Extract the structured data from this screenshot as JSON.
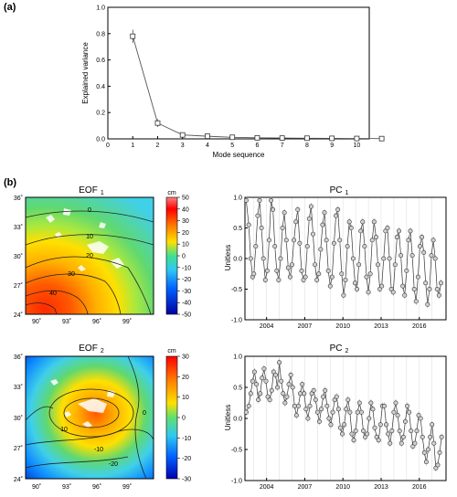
{
  "panel_a_label": "(a)",
  "panel_b_label": "(b)",
  "eof1": {
    "title_base": "EOF",
    "title_sub": "1",
    "unit": "cm",
    "colorbar_ticks": [
      "50",
      "40",
      "30",
      "20",
      "10",
      "0",
      "-10",
      "-20",
      "-30",
      "-40",
      "-50"
    ],
    "lat_ticks": [
      "36˚",
      "33˚",
      "30˚",
      "27˚",
      "24˚"
    ],
    "lon_ticks": [
      "90˚",
      "93˚",
      "96˚",
      "99˚"
    ],
    "contour_labels": [
      "0",
      "10",
      "20",
      "30",
      "40"
    ],
    "colors": {
      "top": "#ff7f7f",
      "yellow": "#ffe000",
      "green": "#60d870",
      "cyan": "#40d0e8",
      "red": "#ff2a00"
    }
  },
  "eof2": {
    "title_base": "EOF",
    "title_sub": "2",
    "unit": "cm",
    "colorbar_ticks": [
      "30",
      "20",
      "10",
      "0",
      "-10",
      "-20",
      "-30"
    ],
    "lat_ticks": [
      "36˚",
      "33˚",
      "30˚",
      "27˚",
      "24˚"
    ],
    "lon_ticks": [
      "90˚",
      "93˚",
      "96˚",
      "99˚"
    ],
    "contour_labels": [
      "0",
      "10",
      "-10",
      "-20"
    ]
  },
  "pc1": {
    "title_base": "PC",
    "title_sub": "1",
    "ylabel": "Unitless",
    "yticks": [
      "1.0",
      "0.5",
      "0.0",
      "-0.5",
      "-1.0"
    ],
    "xticks": [
      "2004",
      "2007",
      "2010",
      "2013",
      "2016"
    ]
  },
  "pc2": {
    "title_base": "PC",
    "title_sub": "2",
    "ylabel": "Unitless",
    "yticks": [
      "1.0",
      "0.5",
      "0.0",
      "-0.5",
      "-1.0"
    ],
    "xticks": [
      "2004",
      "2007",
      "2010",
      "2013",
      "2016"
    ]
  },
  "chart_data": [
    {
      "type": "line",
      "xlabel": "Mode sequence",
      "ylabel": "Explained variance",
      "xlim": [
        0,
        10.5
      ],
      "ylim": [
        0,
        1.0
      ],
      "xticks": [
        0,
        1,
        2,
        3,
        4,
        5,
        6,
        7,
        8,
        9,
        10
      ],
      "yticks": [
        0.0,
        0.2,
        0.4,
        0.6,
        0.8,
        1.0
      ],
      "x": [
        1,
        2,
        3,
        4,
        5,
        6,
        7,
        8,
        9,
        10,
        11
      ],
      "y": [
        0.78,
        0.12,
        0.03,
        0.02,
        0.012,
        0.008,
        0.006,
        0.005,
        0.004,
        0.003,
        0.002
      ],
      "error": [
        0.05,
        0.03,
        0.008,
        0.006,
        0.004,
        0.003,
        0.003,
        0.002,
        0.002,
        0.002,
        0.002
      ]
    },
    {
      "type": "line",
      "xlim": [
        2002.3,
        2018.1
      ],
      "ylim": [
        -1.0,
        1.0
      ],
      "x": [
        2002.4,
        2002.6,
        2002.75,
        2002.9,
        2003.0,
        2003.15,
        2003.3,
        2003.45,
        2003.6,
        2003.75,
        2003.9,
        2004.05,
        2004.2,
        2004.35,
        2004.5,
        2004.65,
        2004.8,
        2004.95,
        2005.1,
        2005.25,
        2005.4,
        2005.55,
        2005.7,
        2005.85,
        2006.0,
        2006.15,
        2006.3,
        2006.45,
        2006.6,
        2006.75,
        2006.9,
        2007.05,
        2007.2,
        2007.35,
        2007.5,
        2007.65,
        2007.8,
        2007.95,
        2008.1,
        2008.25,
        2008.4,
        2008.55,
        2008.7,
        2008.85,
        2009.0,
        2009.15,
        2009.3,
        2009.45,
        2009.6,
        2009.75,
        2009.9,
        2010.05,
        2010.2,
        2010.35,
        2010.5,
        2010.65,
        2010.8,
        2010.95,
        2011.1,
        2011.25,
        2011.4,
        2011.55,
        2011.7,
        2011.85,
        2012.0,
        2012.15,
        2012.3,
        2012.45,
        2012.6,
        2012.75,
        2012.9,
        2013.05,
        2013.2,
        2013.35,
        2013.5,
        2013.65,
        2013.8,
        2013.95,
        2014.1,
        2014.25,
        2014.4,
        2014.55,
        2014.7,
        2014.85,
        2015.0,
        2015.15,
        2015.3,
        2015.45,
        2015.6,
        2015.75,
        2015.9,
        2016.05,
        2016.2,
        2016.35,
        2016.5,
        2016.65,
        2016.8,
        2016.95,
        2017.1,
        2017.25,
        2017.4,
        2017.55,
        2017.7
      ],
      "y": [
        0.95,
        0.55,
        0.0,
        -0.3,
        -0.25,
        0.2,
        0.7,
        0.95,
        0.5,
        0.0,
        -0.35,
        -0.2,
        0.3,
        0.95,
        0.8,
        0.2,
        -0.2,
        -0.35,
        0.0,
        0.5,
        0.75,
        0.3,
        -0.15,
        -0.3,
        -0.1,
        0.3,
        0.6,
        0.8,
        0.25,
        -0.2,
        -0.35,
        -0.3,
        0.2,
        0.65,
        0.85,
        0.4,
        -0.1,
        -0.35,
        -0.25,
        0.15,
        0.55,
        0.75,
        0.3,
        -0.2,
        -0.45,
        -0.3,
        0.25,
        0.7,
        0.8,
        0.3,
        -0.25,
        -0.6,
        -0.35,
        0.2,
        0.6,
        0.5,
        0.0,
        -0.4,
        -0.5,
        -0.1,
        0.45,
        0.6,
        0.2,
        -0.3,
        -0.55,
        -0.25,
        0.3,
        0.6,
        0.35,
        -0.1,
        -0.5,
        -0.45,
        0.0,
        0.45,
        0.5,
        0.0,
        -0.5,
        -0.55,
        -0.1,
        0.35,
        0.45,
        0.05,
        -0.45,
        -0.6,
        -0.2,
        0.3,
        0.45,
        0.05,
        -0.5,
        -0.7,
        -0.3,
        0.2,
        0.35,
        0.1,
        -0.4,
        -0.75,
        -0.5,
        0.05,
        0.3,
        0.0,
        -0.5,
        -0.6,
        -0.4
      ]
    },
    {
      "type": "line",
      "xlim": [
        2002.3,
        2018.1
      ],
      "ylim": [
        -1.0,
        1.0
      ],
      "x": [
        2002.4,
        2002.6,
        2002.75,
        2002.9,
        2003.05,
        2003.2,
        2003.35,
        2003.5,
        2003.65,
        2003.8,
        2003.95,
        2004.1,
        2004.25,
        2004.4,
        2004.55,
        2004.7,
        2004.85,
        2005.0,
        2005.15,
        2005.3,
        2005.45,
        2005.6,
        2005.75,
        2005.9,
        2006.05,
        2006.2,
        2006.35,
        2006.5,
        2006.65,
        2006.8,
        2006.95,
        2007.1,
        2007.25,
        2007.4,
        2007.55,
        2007.7,
        2007.85,
        2008.0,
        2008.15,
        2008.3,
        2008.45,
        2008.6,
        2008.75,
        2008.9,
        2009.05,
        2009.2,
        2009.35,
        2009.5,
        2009.65,
        2009.8,
        2009.95,
        2010.1,
        2010.25,
        2010.4,
        2010.55,
        2010.7,
        2010.85,
        2011.0,
        2011.15,
        2011.3,
        2011.45,
        2011.6,
        2011.75,
        2011.9,
        2012.05,
        2012.2,
        2012.35,
        2012.5,
        2012.65,
        2012.8,
        2012.95,
        2013.1,
        2013.25,
        2013.4,
        2013.55,
        2013.7,
        2013.85,
        2014.0,
        2014.15,
        2014.3,
        2014.45,
        2014.6,
        2014.75,
        2014.9,
        2015.05,
        2015.2,
        2015.35,
        2015.5,
        2015.65,
        2015.8,
        2015.95,
        2016.1,
        2016.25,
        2016.4,
        2016.55,
        2016.7,
        2016.85,
        2017.0,
        2017.15,
        2017.3,
        2017.45,
        2017.6,
        2017.75
      ],
      "y": [
        0.1,
        0.2,
        0.4,
        0.6,
        0.75,
        0.55,
        0.3,
        0.4,
        0.65,
        0.8,
        0.6,
        0.35,
        0.3,
        0.45,
        0.75,
        0.7,
        0.5,
        0.9,
        0.6,
        0.4,
        0.25,
        0.35,
        0.55,
        0.7,
        0.5,
        0.2,
        0.05,
        0.2,
        0.4,
        0.55,
        0.4,
        0.15,
        0.0,
        0.2,
        0.4,
        0.45,
        0.3,
        0.1,
        -0.05,
        0.15,
        0.35,
        0.45,
        0.2,
        0.0,
        -0.1,
        0.1,
        0.3,
        0.35,
        0.15,
        -0.15,
        -0.25,
        -0.1,
        0.15,
        0.3,
        0.1,
        -0.25,
        -0.35,
        -0.2,
        0.1,
        0.25,
        0.1,
        -0.2,
        -0.3,
        -0.25,
        0.0,
        0.25,
        0.15,
        -0.15,
        -0.3,
        -0.35,
        -0.1,
        0.2,
        0.2,
        -0.1,
        -0.25,
        -0.4,
        -0.2,
        0.1,
        0.25,
        0.05,
        -0.2,
        -0.4,
        -0.3,
        -0.05,
        0.2,
        0.1,
        -0.2,
        -0.45,
        -0.4,
        -0.2,
        0.05,
        0.0,
        -0.3,
        -0.55,
        -0.7,
        -0.5,
        -0.3,
        -0.1,
        -0.4,
        -0.8,
        -0.75,
        -0.55,
        -0.3
      ]
    }
  ]
}
